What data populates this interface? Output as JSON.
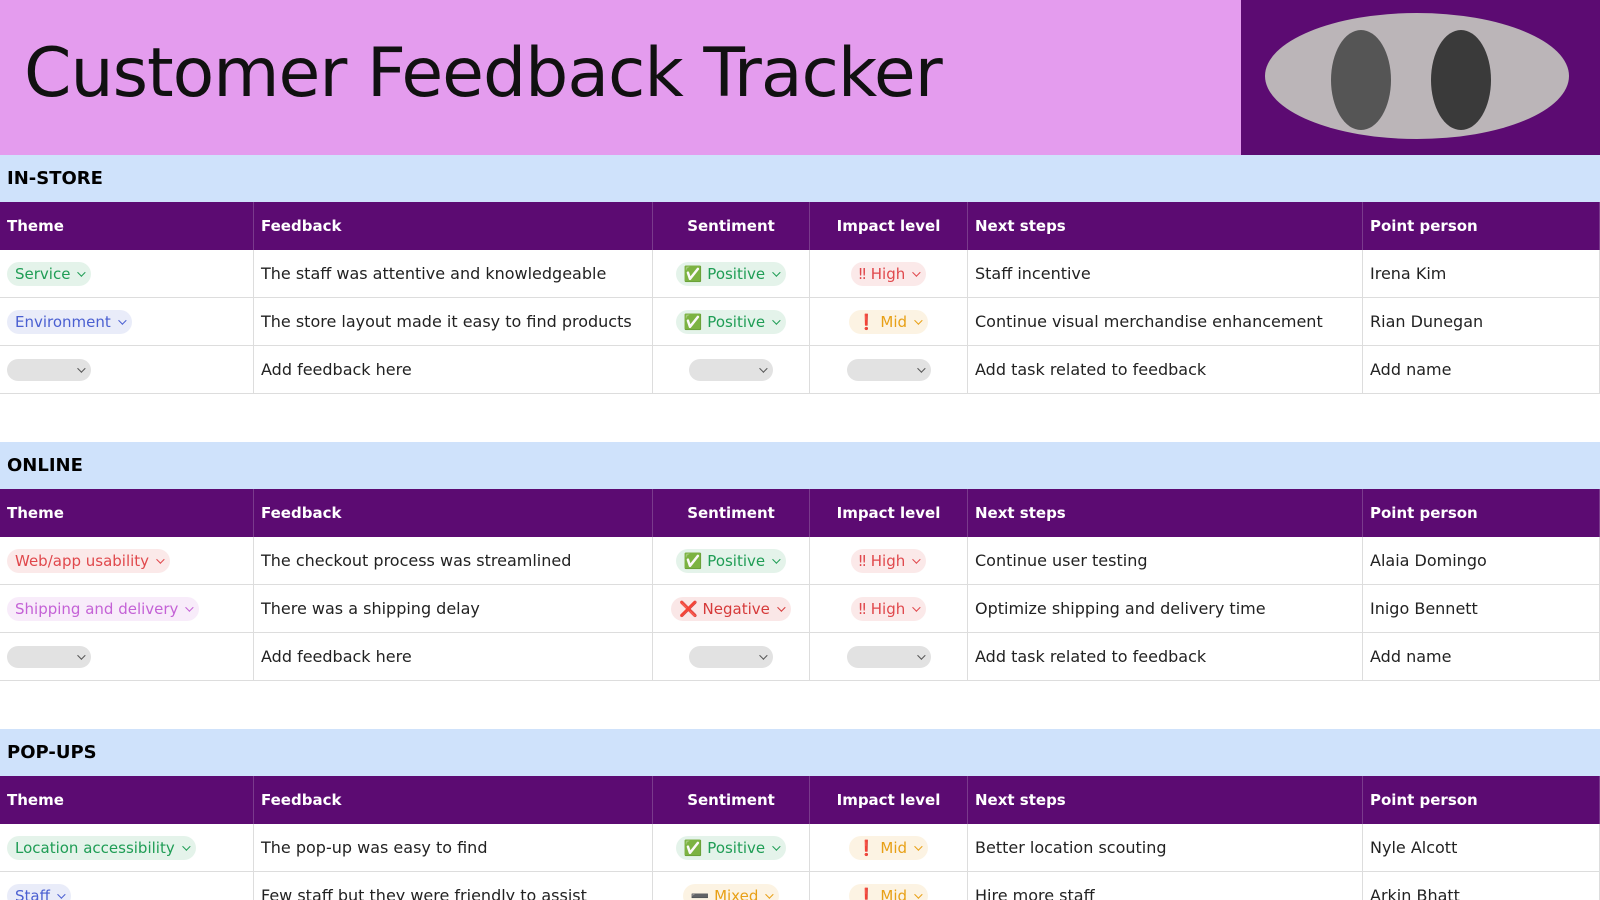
{
  "header": {
    "title": "Customer Feedback Tracker"
  },
  "columns": [
    "Theme",
    "Feedback",
    "Sentiment",
    "Impact level",
    "Next steps",
    "Point person"
  ],
  "sections": [
    {
      "title": "IN-STORE",
      "rows": [
        {
          "theme": {
            "label": "Service",
            "color": "#1f9d55"
          },
          "feedback": "The staff was attentive and knowledgeable",
          "sentiment": {
            "label": "✅ Positive",
            "color": "#1f9d55"
          },
          "impact": {
            "label": "‼ High",
            "color": "#e0484c"
          },
          "next": "Staff incentive",
          "person": "Irena Kim"
        },
        {
          "theme": {
            "label": "Environment",
            "color": "#4a5fd1"
          },
          "feedback": "The store layout made it easy to find products",
          "sentiment": {
            "label": "✅ Positive",
            "color": "#1f9d55"
          },
          "impact": {
            "label": "❗ Mid",
            "color": "#e8a016"
          },
          "next": "Continue visual merchandise enhancement",
          "person": "Rian Dunegan"
        },
        {
          "theme": null,
          "feedback": "Add feedback here",
          "sentiment": null,
          "impact": null,
          "next": "Add task related to feedback",
          "person": "Add name"
        }
      ]
    },
    {
      "title": "ONLINE",
      "rows": [
        {
          "theme": {
            "label": "Web/app usability",
            "color": "#e0484c"
          },
          "feedback": "The checkout process was streamlined",
          "sentiment": {
            "label": "✅ Positive",
            "color": "#1f9d55"
          },
          "impact": {
            "label": "‼ High",
            "color": "#e0484c"
          },
          "next": "Continue user testing",
          "person": "Alaia Domingo"
        },
        {
          "theme": {
            "label": "Shipping and delivery",
            "color": "#c462d6"
          },
          "feedback": "There was a shipping delay",
          "sentiment": {
            "label": "❌ Negative",
            "color": "#d63a3a"
          },
          "impact": {
            "label": "‼ High",
            "color": "#e0484c"
          },
          "next": "Optimize shipping and delivery time",
          "person": "Inigo Bennett"
        },
        {
          "theme": null,
          "feedback": "Add feedback here",
          "sentiment": null,
          "impact": null,
          "next": "Add task related to feedback",
          "person": "Add name"
        }
      ]
    },
    {
      "title": "POP-UPS",
      "rows": [
        {
          "theme": {
            "label": "Location accessibility",
            "color": "#1f9d55"
          },
          "feedback": "The pop-up was easy to find",
          "sentiment": {
            "label": "✅ Positive",
            "color": "#1f9d55"
          },
          "impact": {
            "label": "❗ Mid",
            "color": "#e8a016"
          },
          "next": "Better location scouting",
          "person": "Nyle Alcott"
        },
        {
          "theme": {
            "label": "Staff",
            "color": "#4a5fd1"
          },
          "feedback": "Few staff but they were friendly to assist",
          "sentiment": {
            "label": "➖ Mixed",
            "color": "#e8a016"
          },
          "impact": {
            "label": "❗ Mid",
            "color": "#e8a016"
          },
          "next": "Hire more staff",
          "person": "Arkin Bhatt"
        }
      ]
    }
  ]
}
